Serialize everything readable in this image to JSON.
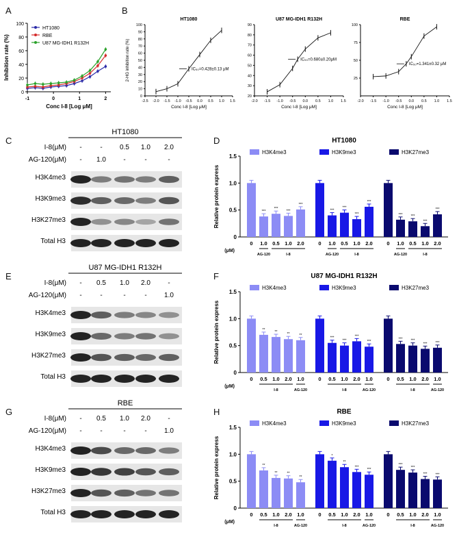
{
  "panel_labels": [
    "A",
    "B",
    "C",
    "D",
    "E",
    "F",
    "G",
    "H"
  ],
  "chart_data": [
    {
      "id": "A",
      "type": "line",
      "xlabel": "Conc I-8 [Log μM]",
      "ylabel": "Inhibition rate (%)",
      "xlim": [
        -1,
        2.2
      ],
      "ylim": [
        0,
        100
      ],
      "xticks": [
        "-1",
        "0",
        "1",
        "2"
      ],
      "yticks": [
        "0",
        "20",
        "40",
        "60",
        "80",
        "100"
      ],
      "legend": [
        "HT1080",
        "RBE",
        "U87 MG-IDH1 R132H"
      ],
      "legend_position": "top-left",
      "x": [
        -1,
        -0.7,
        -0.4,
        -0.1,
        0.2,
        0.5,
        0.8,
        1.1,
        1.4,
        1.7,
        2.0
      ],
      "series": [
        {
          "name": "HT1080",
          "color": "#2a2aa8",
          "values": [
            5,
            6,
            5,
            7,
            8,
            9,
            12,
            16,
            22,
            30,
            37
          ]
        },
        {
          "name": "RBE",
          "color": "#d42a2a",
          "values": [
            7,
            8,
            7,
            9,
            10,
            12,
            15,
            20,
            27,
            38,
            53
          ]
        },
        {
          "name": "U87 MG-IDH1 R132H",
          "color": "#2aa12a",
          "values": [
            10,
            12,
            11,
            12,
            13,
            14,
            17,
            23,
            31,
            44,
            62
          ]
        }
      ]
    },
    {
      "id": "B1",
      "type": "line",
      "title": "HT1080",
      "xlabel": "Conc I-8 [Log μM]",
      "ylabel": "2-HG inhibition rate (%)",
      "annotation": "IC₅₀=0.428±0.13 μM",
      "xlim": [
        -2.5,
        1.5
      ],
      "ylim": [
        0,
        100
      ],
      "xticks": [
        "-2.5",
        "-2.0",
        "-1.5",
        "-1.0",
        "-0.5",
        "0.0",
        "0.5",
        "1.0",
        "1.5"
      ],
      "yticks": [
        "0",
        "10",
        "20",
        "30",
        "40",
        "50",
        "60",
        "70",
        "80",
        "90",
        "100"
      ],
      "points": [
        [
          -2.0,
          6
        ],
        [
          -1.5,
          10
        ],
        [
          -1.0,
          17
        ],
        [
          -0.5,
          38
        ],
        [
          0.0,
          58
        ],
        [
          0.5,
          78
        ],
        [
          1.0,
          92
        ]
      ]
    },
    {
      "id": "B2",
      "type": "line",
      "title": "U87 MG-IDH1 R132H",
      "xlabel": "Conc I-8 [Log μM]",
      "annotation": "IC₅₀=0.680±0.20μM",
      "xlim": [
        -2.0,
        1.5
      ],
      "ylim": [
        20,
        90
      ],
      "xticks": [
        "-2.0",
        "-1.5",
        "-1.0",
        "-0.5",
        "0.0",
        "0.5",
        "1.0",
        "1.5"
      ],
      "yticks": [
        "20",
        "30",
        "40",
        "50",
        "60",
        "70",
        "80",
        "90"
      ],
      "points": [
        [
          -1.5,
          24
        ],
        [
          -1.0,
          31
        ],
        [
          -0.5,
          47
        ],
        [
          -0.3,
          56
        ],
        [
          0.0,
          66
        ],
        [
          0.5,
          77
        ],
        [
          1.0,
          82
        ]
      ]
    },
    {
      "id": "B3",
      "type": "line",
      "title": "RBE",
      "xlabel": "Conc I-8 [Log μM]",
      "annotation": "IC₅₀=1.341±0.32 μM",
      "xlim": [
        -2.0,
        1.5
      ],
      "ylim": [
        0,
        100
      ],
      "xticks": [
        "-2.0",
        "-1.5",
        "-1.0",
        "-0.5",
        "0.0",
        "0.5",
        "1.0",
        "1.5"
      ],
      "yticks": [
        "25",
        "50",
        "75",
        "100"
      ],
      "points": [
        [
          -1.5,
          27
        ],
        [
          -1.0,
          28
        ],
        [
          -0.5,
          34
        ],
        [
          -0.2,
          45
        ],
        [
          0.0,
          55
        ],
        [
          0.5,
          84
        ],
        [
          1.0,
          97
        ]
      ]
    },
    {
      "id": "D",
      "type": "bar",
      "title": "HT1080",
      "ylabel": "Relative protein express",
      "ylim": [
        0,
        1.5
      ],
      "yticks": [
        "0",
        "0.5",
        "1.0",
        "1.5"
      ],
      "categories": [
        "0",
        "1.0",
        "0.5",
        "1.0",
        "2.0"
      ],
      "unit_label": "(μM)",
      "group_labels": [
        "AG-120",
        "I-8"
      ],
      "legend": [
        "H3K4me3",
        "H3K9me3",
        "H3K27me3"
      ],
      "series": [
        {
          "name": "H3K4me3",
          "color": "#8c8cf5",
          "values": [
            1.0,
            0.38,
            0.43,
            0.39,
            0.51
          ],
          "stars": [
            "",
            "***",
            "***",
            "***",
            "***"
          ]
        },
        {
          "name": "H3K9me3",
          "color": "#1818e6",
          "values": [
            1.0,
            0.4,
            0.45,
            0.33,
            0.56
          ],
          "stars": [
            "",
            "***",
            "***",
            "***",
            "***"
          ]
        },
        {
          "name": "H3K27me3",
          "color": "#0a0a6e",
          "values": [
            1.0,
            0.32,
            0.29,
            0.2,
            0.42
          ],
          "stars": [
            "",
            "***",
            "***",
            "***",
            "***"
          ]
        }
      ]
    },
    {
      "id": "F",
      "type": "bar",
      "title": "U87 MG-IDH1 R132H",
      "ylabel": "Relative protein express",
      "ylim": [
        0,
        1.5
      ],
      "yticks": [
        "0",
        "0.5",
        "1.0",
        "1.5"
      ],
      "categories": [
        "0",
        "0.5",
        "1.0",
        "2.0",
        "1.0"
      ],
      "unit_label": "(μM)",
      "group_labels": [
        "I-8",
        "AG-120"
      ],
      "legend": [
        "H3K4me3",
        "H3K9me3",
        "H3K27me3"
      ],
      "series": [
        {
          "name": "H3K4me3",
          "color": "#8c8cf5",
          "values": [
            1.0,
            0.7,
            0.66,
            0.62,
            0.6
          ],
          "stars": [
            "",
            "**",
            "**",
            "**",
            "**"
          ]
        },
        {
          "name": "H3K9me3",
          "color": "#1818e6",
          "values": [
            1.0,
            0.55,
            0.5,
            0.58,
            0.48
          ],
          "stars": [
            "",
            "***",
            "***",
            "***",
            "***"
          ]
        },
        {
          "name": "H3K27me3",
          "color": "#0a0a6e",
          "values": [
            1.0,
            0.53,
            0.5,
            0.44,
            0.46
          ],
          "stars": [
            "",
            "***",
            "***",
            "***",
            "***"
          ]
        }
      ]
    },
    {
      "id": "H",
      "type": "bar",
      "title": "RBE",
      "ylabel": "Relative protein express",
      "ylim": [
        0,
        1.5
      ],
      "yticks": [
        "0",
        "0.5",
        "1.0",
        "1.5"
      ],
      "categories": [
        "0",
        "0.5",
        "1.0",
        "2.0",
        "1.0"
      ],
      "unit_label": "(μM)",
      "group_labels": [
        "I-8",
        "AG-120"
      ],
      "legend": [
        "H3K4me3",
        "H3K9me3",
        "H3K27me3"
      ],
      "series": [
        {
          "name": "H3K4me3",
          "color": "#8c8cf5",
          "values": [
            1.0,
            0.7,
            0.56,
            0.55,
            0.48
          ],
          "stars": [
            "",
            "**",
            "**",
            "**",
            "**"
          ]
        },
        {
          "name": "H3K9me3",
          "color": "#1818e6",
          "values": [
            1.0,
            0.88,
            0.76,
            0.67,
            0.62
          ],
          "stars": [
            "",
            "*",
            "**",
            "***",
            "***"
          ]
        },
        {
          "name": "H3K27me3",
          "color": "#0a0a6e",
          "values": [
            1.0,
            0.71,
            0.66,
            0.54,
            0.53
          ],
          "stars": [
            "",
            "***",
            "***",
            "***",
            "***"
          ]
        }
      ]
    }
  ],
  "blots": [
    {
      "id": "C",
      "title": "HT1080",
      "rows": [
        {
          "label": "I-8(μM)",
          "values": [
            "-",
            "-",
            "0.5",
            "1.0",
            "2.0"
          ]
        },
        {
          "label": "AG-120(μM)",
          "values": [
            "-",
            "1.0",
            "-",
            "-",
            "-"
          ]
        }
      ],
      "bands": [
        "H3K4me3",
        "H3K9me3",
        "H3K27me3",
        "Total H3"
      ],
      "intensity": [
        [
          1.0,
          0.55,
          0.6,
          0.55,
          0.7
        ],
        [
          0.95,
          0.7,
          0.65,
          0.55,
          0.75
        ],
        [
          1.0,
          0.45,
          0.5,
          0.35,
          0.6
        ],
        [
          1.0,
          1.0,
          1.0,
          1.0,
          1.0
        ]
      ]
    },
    {
      "id": "E",
      "title": "U87 MG-IDH1 R132H",
      "rows": [
        {
          "label": "I-8(μM)",
          "values": [
            "-",
            "0.5",
            "1.0",
            "2.0",
            "-"
          ]
        },
        {
          "label": "AG-120(μM)",
          "values": [
            "-",
            "-",
            "-",
            "-",
            "1.0"
          ]
        }
      ],
      "bands": [
        "H3K4me3",
        "H3K9me3",
        "H3K27me3",
        "Total H3"
      ],
      "intensity": [
        [
          1.0,
          0.7,
          0.55,
          0.5,
          0.45
        ],
        [
          1.0,
          0.65,
          0.55,
          0.6,
          0.45
        ],
        [
          1.0,
          0.75,
          0.7,
          0.65,
          0.7
        ],
        [
          1.0,
          1.0,
          1.0,
          1.0,
          1.0
        ]
      ]
    },
    {
      "id": "G",
      "title": "RBE",
      "rows": [
        {
          "label": "I-8(μM)",
          "values": [
            "-",
            "0.5",
            "1.0",
            "2.0",
            "-"
          ]
        },
        {
          "label": "AG-120(μM)",
          "values": [
            "-",
            "-",
            "-",
            "-",
            "1.0"
          ]
        }
      ],
      "bands": [
        "H3K4me3",
        "H3K9me3",
        "H3K27me3",
        "Total H3"
      ],
      "intensity": [
        [
          1.0,
          0.8,
          0.65,
          0.65,
          0.55
        ],
        [
          1.0,
          0.9,
          0.85,
          0.75,
          0.7
        ],
        [
          1.0,
          0.75,
          0.7,
          0.6,
          0.6
        ],
        [
          1.0,
          1.0,
          1.0,
          1.0,
          1.0
        ]
      ]
    }
  ]
}
